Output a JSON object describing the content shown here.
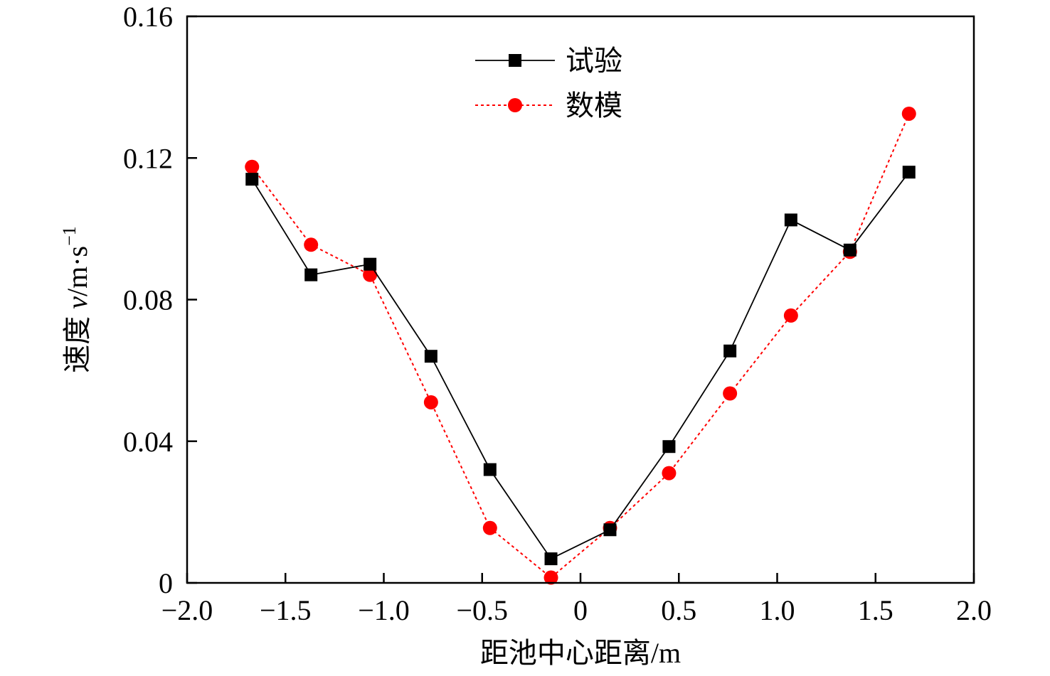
{
  "chart_data": {
    "type": "line",
    "xlabel": "距池中心距离/m",
    "ylabel_prefix": "速度 ",
    "ylabel_var": "v",
    "ylabel_unit": "/m·s",
    "ylabel_sup": "−1",
    "xlim": [
      -2.0,
      2.0
    ],
    "ylim": [
      0,
      0.16
    ],
    "x_ticks": [
      -2.0,
      -1.5,
      -1.0,
      -0.5,
      0,
      0.5,
      1.0,
      1.5,
      2.0
    ],
    "x_tick_labels": [
      "−2.0",
      "−1.5",
      "−1.0",
      "−0.5",
      "0",
      "0.5",
      "1.0",
      "1.5",
      "2.0"
    ],
    "y_ticks": [
      0,
      0.04,
      0.08,
      0.12,
      0.16
    ],
    "y_tick_labels": [
      "0",
      "0.04",
      "0.08",
      "0.12",
      "0.16"
    ],
    "grid": false,
    "legend_position": "top-center",
    "series": [
      {
        "name": "试验",
        "color": "#000000",
        "line_style": "solid",
        "marker": "square",
        "x": [
          -1.67,
          -1.37,
          -1.07,
          -0.76,
          -0.46,
          -0.15,
          0.15,
          0.45,
          0.76,
          1.07,
          1.37,
          1.67
        ],
        "y": [
          0.114,
          0.087,
          0.09,
          0.064,
          0.032,
          0.0068,
          0.015,
          0.0385,
          0.0655,
          0.1025,
          0.094,
          0.116
        ]
      },
      {
        "name": "数模",
        "color": "#ff0000",
        "line_style": "dotted",
        "marker": "circle",
        "x": [
          -1.67,
          -1.37,
          -1.07,
          -0.76,
          -0.46,
          -0.15,
          0.15,
          0.45,
          0.76,
          1.07,
          1.37,
          1.67
        ],
        "y": [
          0.1175,
          0.0955,
          0.087,
          0.051,
          0.0155,
          0.0015,
          0.0155,
          0.031,
          0.0535,
          0.0755,
          0.0935,
          0.1325
        ]
      }
    ]
  }
}
